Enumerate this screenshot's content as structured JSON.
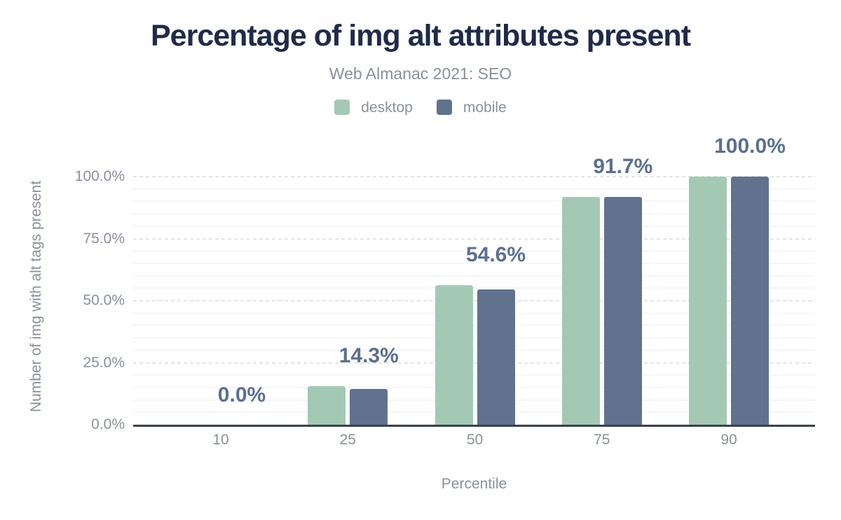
{
  "chart_data": {
    "type": "bar",
    "title": "Percentage of img alt attributes present",
    "subtitle": "Web Almanac 2021: SEO",
    "xlabel": "Percentile",
    "ylabel": "Number of img with alt tags present",
    "categories": [
      "10",
      "25",
      "50",
      "75",
      "90"
    ],
    "series": [
      {
        "name": "desktop",
        "color": "#a3c9b5",
        "values": [
          0,
          15.5,
          56.3,
          91.9,
          100.0
        ]
      },
      {
        "name": "mobile",
        "color": "#60728d",
        "values": [
          0,
          14.3,
          54.6,
          91.7,
          100.0
        ]
      }
    ],
    "annotations": [
      "0.0%",
      "14.3%",
      "54.6%",
      "91.7%",
      "100.0%"
    ],
    "ylim": [
      0,
      100
    ],
    "ytick_values": [
      0,
      25,
      50,
      75,
      100
    ],
    "ytick_labels": [
      "0.0%",
      "25.0%",
      "50.0%",
      "75.0%",
      "100.0%"
    ],
    "minor_grid_step": 5,
    "major_grid_step": 25,
    "grid": true,
    "legend_position": "top"
  },
  "colors": {
    "title": "#1f2b49",
    "muted_text": "#8a9099",
    "annotation": "#5b6f90",
    "axis_line": "#3a414b",
    "grid_major": "#e4e4e4",
    "grid_minor": "#f6f6f6",
    "background": "#ffffff"
  }
}
